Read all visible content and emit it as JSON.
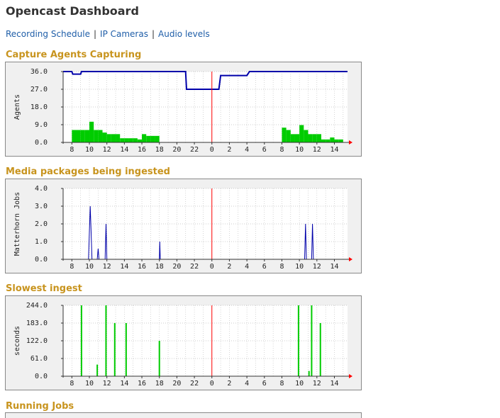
{
  "page": {
    "title": "Opencast Dashboard"
  },
  "nav": {
    "links": [
      {
        "label": "Recording Schedule"
      },
      {
        "label": "IP Cameras"
      },
      {
        "label": "Audio levels"
      }
    ],
    "separator": "|"
  },
  "colors": {
    "section_title": "#c8941e",
    "link": "#1f5ea8",
    "area": "#00cc00",
    "line": "#0000aa",
    "now_line": "#ff0000",
    "graph_bg": "#ffffff",
    "frame_bg": "#f0f0f0"
  },
  "sections": {
    "capture_agents": {
      "title": "Capture Agents Capturing"
    },
    "media_packages": {
      "title": "Media packages being ingested"
    },
    "slowest_ingest": {
      "title": "Slowest ingest"
    },
    "running_jobs": {
      "title": "Running Jobs"
    }
  },
  "chart_data": [
    {
      "type": "area",
      "title": "Capture Agents Capturing",
      "ylabel": "Agents",
      "ytick_labels": [
        "36.0",
        "27.0",
        "18.0",
        "9.0",
        "0.0"
      ],
      "ylim": [
        0,
        36
      ],
      "x_tick_labels": [
        "8",
        "10",
        "12",
        "14",
        "16",
        "18",
        "20",
        "22",
        "0",
        "2",
        "4",
        "6",
        "8",
        "10",
        "12",
        "14"
      ],
      "x_hours_range": [
        7,
        39.5
      ],
      "now_hour": 24,
      "series": [
        {
          "kind": "area",
          "x_hours": [
            7.0,
            7.5,
            8.0,
            8.5,
            9.0,
            9.5,
            10.0,
            10.5,
            11.0,
            11.5,
            12.0,
            12.5,
            13.0,
            13.5,
            14.0,
            14.5,
            15.0,
            15.5,
            16.0,
            16.5,
            17.0,
            17.5,
            18.0,
            32.0,
            32.5,
            33.0,
            33.5,
            34.0,
            34.5,
            35.0,
            35.5,
            36.0,
            36.5,
            37.0,
            37.5,
            38.0,
            38.5,
            39.0
          ],
          "values": [
            0,
            0,
            6.3,
            6.3,
            6.3,
            6.3,
            10.5,
            6.3,
            6.3,
            5.0,
            4.2,
            4.2,
            4.2,
            2.1,
            2.1,
            2.1,
            2.1,
            1.5,
            4.2,
            3.3,
            3.3,
            3.3,
            0,
            7.5,
            6.3,
            4.2,
            4.2,
            8.8,
            6.3,
            4.2,
            4.2,
            4.2,
            1.5,
            1.5,
            2.5,
            1.5,
            1.5,
            0
          ]
        },
        {
          "kind": "line",
          "x_hours": [
            7.0,
            8.0,
            8.1,
            9.0,
            9.1,
            21.0,
            21.1,
            24.0,
            24.8,
            25.0,
            28.0,
            28.3,
            39.5
          ],
          "values": [
            36,
            36,
            34.7,
            34.7,
            36,
            36,
            27,
            27,
            27,
            34,
            34,
            36,
            36
          ]
        }
      ]
    },
    {
      "type": "line",
      "title": "Media packages being ingested",
      "ylabel": "Matterhorn Jobs",
      "ytick_labels": [
        "4.0",
        "3.0",
        "2.0",
        "1.0",
        "0.0"
      ],
      "ylim": [
        0,
        4
      ],
      "x_tick_labels": [
        "8",
        "10",
        "12",
        "14",
        "16",
        "18",
        "20",
        "22",
        "0",
        "2",
        "4",
        "6",
        "8",
        "10",
        "12",
        "14"
      ],
      "x_hours_range": [
        7,
        39.5
      ],
      "now_hour": 24,
      "series": [
        {
          "kind": "line",
          "x_hours": [
            7.0,
            9.9,
            10.0,
            10.1,
            10.2,
            10.3,
            10.9,
            11.0,
            11.1,
            11.8,
            11.9,
            12.0,
            18.0,
            18.05,
            18.1,
            34.6,
            34.7,
            34.8,
            35.4,
            35.5,
            35.6,
            39.5
          ],
          "values": [
            0,
            0,
            1.5,
            3.0,
            1.5,
            0,
            0,
            0.6,
            0,
            0,
            2.0,
            0,
            0,
            1.0,
            0,
            0,
            2.0,
            0,
            0,
            2.0,
            0,
            0
          ]
        }
      ]
    },
    {
      "type": "bar",
      "title": "Slowest ingest",
      "ylabel": "seconds",
      "ytick_labels": [
        "244.0",
        "183.0",
        "122.0",
        "61.0",
        "0.0"
      ],
      "ylim": [
        0,
        244
      ],
      "x_tick_labels": [
        "8",
        "10",
        "12",
        "14",
        "16",
        "18",
        "20",
        "22",
        "0",
        "2",
        "4",
        "6",
        "8",
        "10",
        "12",
        "14"
      ],
      "x_hours_range": [
        7,
        39.5
      ],
      "now_hour": 24,
      "series": [
        {
          "kind": "bar",
          "x_hours": [
            9.1,
            10.9,
            11.9,
            12.9,
            14.2,
            18.0,
            33.9,
            35.1,
            35.4,
            36.4
          ],
          "values": [
            244,
            40,
            244,
            183,
            183,
            122,
            244,
            18,
            244,
            183
          ]
        }
      ]
    }
  ]
}
